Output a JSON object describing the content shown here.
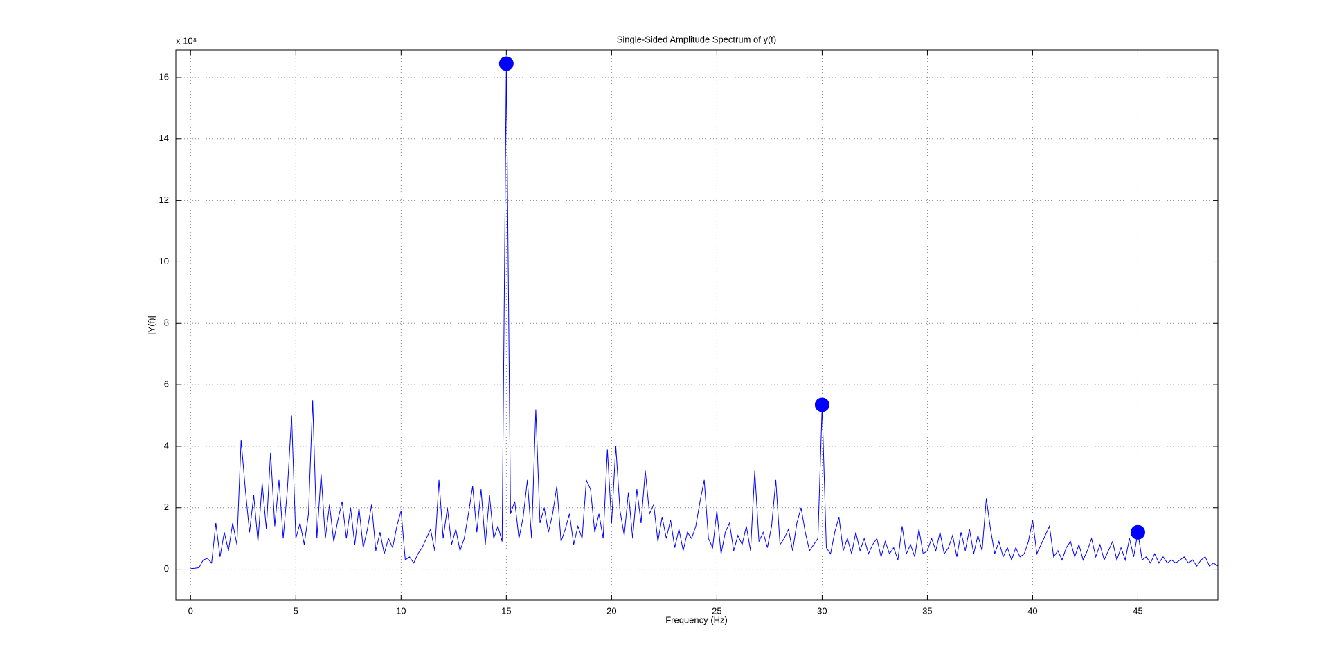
{
  "chart_data": {
    "type": "line",
    "title": "Single-Sided Amplitude Spectrum of y(t)",
    "x_label": "Frequency (Hz)",
    "y_label": "|Y(f)|",
    "y_scale_label": "x 10⁸",
    "xlim": [
      -0.7,
      48.8
    ],
    "ylim": [
      -1,
      16.9
    ],
    "xticks": [
      0,
      5,
      10,
      15,
      20,
      25,
      30,
      35,
      40,
      45
    ],
    "yticks": [
      0,
      2,
      4,
      6,
      8,
      10,
      12,
      14,
      16
    ],
    "grid": true,
    "series": [
      {
        "style": "line",
        "color": "#0000ff",
        "x": [
          0,
          0.2,
          0.4,
          0.6,
          0.8,
          1,
          1.2,
          1.4,
          1.6,
          1.8,
          2,
          2.2,
          2.4,
          2.6,
          2.8,
          3,
          3.2,
          3.4,
          3.6,
          3.8,
          4,
          4.2,
          4.4,
          4.6,
          4.8,
          5,
          5.2,
          5.4,
          5.6,
          5.8,
          6,
          6.2,
          6.4,
          6.6,
          6.8,
          7,
          7.2,
          7.4,
          7.6,
          7.8,
          8,
          8.2,
          8.4,
          8.6,
          8.8,
          9,
          9.2,
          9.4,
          9.6,
          9.8,
          10,
          10.2,
          10.4,
          10.6,
          10.8,
          11,
          11.2,
          11.4,
          11.6,
          11.8,
          12,
          12.2,
          12.4,
          12.6,
          12.8,
          13,
          13.2,
          13.4,
          13.6,
          13.8,
          14,
          14.2,
          14.4,
          14.6,
          14.8,
          15,
          15.2,
          15.4,
          15.6,
          15.8,
          16,
          16.2,
          16.4,
          16.6,
          16.8,
          17,
          17.2,
          17.4,
          17.6,
          17.8,
          18,
          18.2,
          18.4,
          18.6,
          18.8,
          19,
          19.2,
          19.4,
          19.6,
          19.8,
          20,
          20.2,
          20.4,
          20.6,
          20.8,
          21,
          21.2,
          21.4,
          21.6,
          21.8,
          22,
          22.2,
          22.4,
          22.6,
          22.8,
          23,
          23.2,
          23.4,
          23.6,
          23.8,
          24,
          24.2,
          24.4,
          24.6,
          24.8,
          25,
          25.2,
          25.4,
          25.6,
          25.8,
          26,
          26.2,
          26.4,
          26.6,
          26.8,
          27,
          27.2,
          27.4,
          27.6,
          27.8,
          28,
          28.2,
          28.4,
          28.6,
          28.8,
          29,
          29.2,
          29.4,
          29.6,
          29.8,
          30,
          30.2,
          30.4,
          30.6,
          30.8,
          31,
          31.2,
          31.4,
          31.6,
          31.8,
          32,
          32.2,
          32.4,
          32.6,
          32.8,
          33,
          33.2,
          33.4,
          33.6,
          33.8,
          34,
          34.2,
          34.4,
          34.6,
          34.8,
          35,
          35.2,
          35.4,
          35.6,
          35.8,
          36,
          36.2,
          36.4,
          36.6,
          36.8,
          37,
          37.2,
          37.4,
          37.6,
          37.8,
          38,
          38.2,
          38.4,
          38.6,
          38.8,
          39,
          39.2,
          39.4,
          39.6,
          39.8,
          40,
          40.2,
          40.4,
          40.6,
          40.8,
          41,
          41.2,
          41.4,
          41.6,
          41.8,
          42,
          42.2,
          42.4,
          42.6,
          42.8,
          43,
          43.2,
          43.4,
          43.6,
          43.8,
          44,
          44.2,
          44.4,
          44.6,
          44.8,
          45,
          45.2,
          45.4,
          45.6,
          45.8,
          46,
          46.2,
          46.4,
          46.6,
          46.8,
          47,
          47.2,
          47.4,
          47.6,
          47.8,
          48,
          48.2,
          48.4,
          48.6,
          48.8
        ],
        "values": [
          0.02,
          0.03,
          0.05,
          0.3,
          0.35,
          0.2,
          1.5,
          0.4,
          1.2,
          0.6,
          1.5,
          0.8,
          4.2,
          2.6,
          1.2,
          2.4,
          0.9,
          2.8,
          1.3,
          3.8,
          1.4,
          2.9,
          1.0,
          2.6,
          5.0,
          1.0,
          1.5,
          0.8,
          1.8,
          5.5,
          1.0,
          3.1,
          1.0,
          2.1,
          0.9,
          1.6,
          2.2,
          1.0,
          2.0,
          0.8,
          2.0,
          0.7,
          1.3,
          2.1,
          0.6,
          1.2,
          0.5,
          1.0,
          0.7,
          1.4,
          1.9,
          0.3,
          0.4,
          0.2,
          0.5,
          0.7,
          1.0,
          1.3,
          0.6,
          2.9,
          1.0,
          2.0,
          0.8,
          1.3,
          0.6,
          1.0,
          1.8,
          2.7,
          1.2,
          2.6,
          0.8,
          2.4,
          1.0,
          1.4,
          0.9,
          16.4,
          1.8,
          2.2,
          1.0,
          1.7,
          2.9,
          1.0,
          5.2,
          1.5,
          2.0,
          1.2,
          1.8,
          2.7,
          0.9,
          1.3,
          1.8,
          0.8,
          1.4,
          1.0,
          2.9,
          2.6,
          1.2,
          1.8,
          1.0,
          3.9,
          1.5,
          4.0,
          1.9,
          1.1,
          2.5,
          1.0,
          2.6,
          1.5,
          3.2,
          1.8,
          2.1,
          0.9,
          1.7,
          1.0,
          1.6,
          0.7,
          1.3,
          0.6,
          1.2,
          1.0,
          1.4,
          2.2,
          2.9,
          1.0,
          0.7,
          1.9,
          0.5,
          1.2,
          1.5,
          0.6,
          1.1,
          0.8,
          1.4,
          0.6,
          3.2,
          0.9,
          1.2,
          0.7,
          1.4,
          2.9,
          0.8,
          1.0,
          1.3,
          0.6,
          1.5,
          2.0,
          1.2,
          0.6,
          0.8,
          1.0,
          5.3,
          0.7,
          0.5,
          1.2,
          1.7,
          0.6,
          1.0,
          0.5,
          1.2,
          0.6,
          1.0,
          0.5,
          0.8,
          1.0,
          0.4,
          0.9,
          0.5,
          0.7,
          0.3,
          1.4,
          0.5,
          0.8,
          0.4,
          1.3,
          0.5,
          0.6,
          1.0,
          0.6,
          1.2,
          0.5,
          0.7,
          1.1,
          0.4,
          1.2,
          0.6,
          1.3,
          0.5,
          1.1,
          0.6,
          2.3,
          1.3,
          0.5,
          0.9,
          0.4,
          0.7,
          0.3,
          0.7,
          0.4,
          0.5,
          0.9,
          1.6,
          0.5,
          0.8,
          1.1,
          1.4,
          0.4,
          0.6,
          0.3,
          0.7,
          0.9,
          0.4,
          0.8,
          0.3,
          0.6,
          1.0,
          0.4,
          0.8,
          0.3,
          0.6,
          0.9,
          0.3,
          0.7,
          0.3,
          1.0,
          0.4,
          1.2,
          0.3,
          0.4,
          0.2,
          0.5,
          0.2,
          0.4,
          0.2,
          0.3,
          0.2,
          0.3,
          0.4,
          0.2,
          0.3,
          0.1,
          0.3,
          0.4,
          0.1,
          0.2,
          0.1
        ]
      },
      {
        "style": "markers",
        "color": "#0000ff",
        "x": [
          15,
          30,
          45
        ],
        "values": [
          16.45,
          5.35,
          1.2
        ]
      }
    ]
  }
}
